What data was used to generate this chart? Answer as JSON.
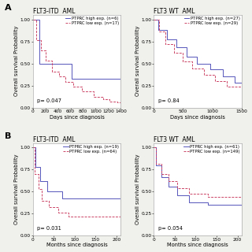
{
  "panels": [
    {
      "row": 0,
      "col": 0,
      "title": "FLT3-ITD  AML",
      "xlabel": "Days since diagnosis",
      "ylabel": "Overall survival Probability",
      "pvalue": "p= 0.047",
      "xmax": 1400,
      "yticks": [
        0.0,
        0.25,
        0.5,
        0.75,
        1.0
      ],
      "xticks": [
        0,
        200,
        400,
        600,
        800,
        1000,
        1200,
        1400
      ],
      "high_label": "PTPRC high exp. (n=6)",
      "low_label": "PTPRC low exp. (n=17)",
      "high_color": "#5555bb",
      "low_color": "#cc4466",
      "high_x": [
        0,
        100,
        100,
        620,
        620,
        1400
      ],
      "high_y": [
        1.0,
        1.0,
        0.5,
        0.5,
        0.33,
        0.33
      ],
      "low_x": [
        0,
        60,
        60,
        130,
        130,
        210,
        210,
        310,
        310,
        420,
        420,
        520,
        520,
        640,
        640,
        780,
        780,
        970,
        970,
        1120,
        1120,
        1220,
        1220,
        1350,
        1350,
        1400
      ],
      "low_y": [
        1.0,
        1.0,
        0.76,
        0.76,
        0.65,
        0.65,
        0.53,
        0.53,
        0.41,
        0.41,
        0.35,
        0.35,
        0.29,
        0.29,
        0.24,
        0.24,
        0.18,
        0.18,
        0.12,
        0.12,
        0.09,
        0.09,
        0.07,
        0.07,
        0.06,
        0.06
      ]
    },
    {
      "row": 0,
      "col": 1,
      "title": "FLT3 WT  AML",
      "xlabel": "Days since diagnosis",
      "ylabel": "Overall survival Probability",
      "pvalue": "p= 0.84",
      "xmax": 1500,
      "yticks": [
        0.0,
        0.25,
        0.5,
        0.75,
        1.0
      ],
      "xticks": [
        0,
        500,
        1000,
        1500
      ],
      "high_label": "PTPRC high exp. (n=27)",
      "low_label": "PTPRC low exp. (n=29)",
      "high_color": "#5555bb",
      "low_color": "#cc4466",
      "high_x": [
        0,
        80,
        80,
        220,
        220,
        380,
        380,
        560,
        560,
        740,
        740,
        960,
        960,
        1180,
        1180,
        1380,
        1380,
        1500
      ],
      "high_y": [
        1.0,
        1.0,
        0.88,
        0.88,
        0.77,
        0.77,
        0.68,
        0.68,
        0.58,
        0.58,
        0.5,
        0.5,
        0.43,
        0.43,
        0.35,
        0.35,
        0.28,
        0.28
      ],
      "low_x": [
        0,
        90,
        90,
        200,
        200,
        340,
        340,
        500,
        500,
        660,
        660,
        860,
        860,
        1050,
        1050,
        1250,
        1250,
        1500
      ],
      "low_y": [
        1.0,
        1.0,
        0.86,
        0.86,
        0.72,
        0.72,
        0.62,
        0.62,
        0.52,
        0.52,
        0.44,
        0.44,
        0.37,
        0.37,
        0.3,
        0.3,
        0.24,
        0.24
      ]
    },
    {
      "row": 1,
      "col": 0,
      "title": "FLT3-ITD  AML",
      "xlabel": "Months since diagnosis",
      "ylabel": "Overall survival Probability",
      "pvalue": "p= 0.031",
      "xmax": 210,
      "yticks": [
        0.0,
        0.25,
        0.5,
        0.75,
        1.0
      ],
      "xticks": [
        0,
        50,
        100,
        150,
        200
      ],
      "high_label": "PTPRC high exp. (n=19)",
      "low_label": "PTPRC low exp. (n=64)",
      "high_color": "#5555bb",
      "low_color": "#cc4466",
      "high_x": [
        0,
        6,
        6,
        18,
        18,
        35,
        35,
        70,
        70,
        210
      ],
      "high_y": [
        1.0,
        1.0,
        0.78,
        0.78,
        0.62,
        0.62,
        0.5,
        0.5,
        0.42,
        0.42
      ],
      "low_x": [
        0,
        5,
        5,
        13,
        13,
        22,
        22,
        38,
        38,
        60,
        60,
        85,
        85,
        210
      ],
      "low_y": [
        1.0,
        1.0,
        0.7,
        0.7,
        0.53,
        0.53,
        0.4,
        0.4,
        0.32,
        0.32,
        0.26,
        0.26,
        0.22,
        0.22
      ]
    },
    {
      "row": 1,
      "col": 1,
      "title": "FLT3 WT  AML",
      "xlabel": "Months since diagnosis",
      "ylabel": "Overall survival Probability",
      "pvalue": "p= 0.054",
      "xmax": 210,
      "yticks": [
        0.0,
        0.25,
        0.5,
        0.75,
        1.0
      ],
      "xticks": [
        0,
        50,
        100,
        150,
        200
      ],
      "high_label": "PTPRC high exp. (n=61)",
      "low_label": "PTPRC low exp. (n=149)",
      "high_color": "#5555bb",
      "low_color": "#cc4466",
      "high_x": [
        0,
        6,
        6,
        18,
        18,
        35,
        35,
        55,
        55,
        85,
        85,
        130,
        130,
        210
      ],
      "high_y": [
        1.0,
        1.0,
        0.8,
        0.8,
        0.66,
        0.66,
        0.56,
        0.56,
        0.46,
        0.46,
        0.38,
        0.38,
        0.35,
        0.35
      ],
      "low_x": [
        0,
        6,
        6,
        18,
        18,
        35,
        35,
        55,
        55,
        85,
        85,
        130,
        130,
        210
      ],
      "low_y": [
        1.0,
        1.0,
        0.82,
        0.82,
        0.7,
        0.7,
        0.62,
        0.62,
        0.54,
        0.54,
        0.48,
        0.48,
        0.44,
        0.44
      ]
    }
  ],
  "panel_labels": [
    [
      "A",
      0,
      0
    ],
    [
      "B",
      1,
      0
    ]
  ],
  "bg_color": "#f0f0ec",
  "panel_bg": "#ffffff",
  "title_fontsize": 5.5,
  "label_fontsize": 4.8,
  "tick_fontsize": 4.2,
  "legend_fontsize": 3.8,
  "pval_fontsize": 4.8
}
